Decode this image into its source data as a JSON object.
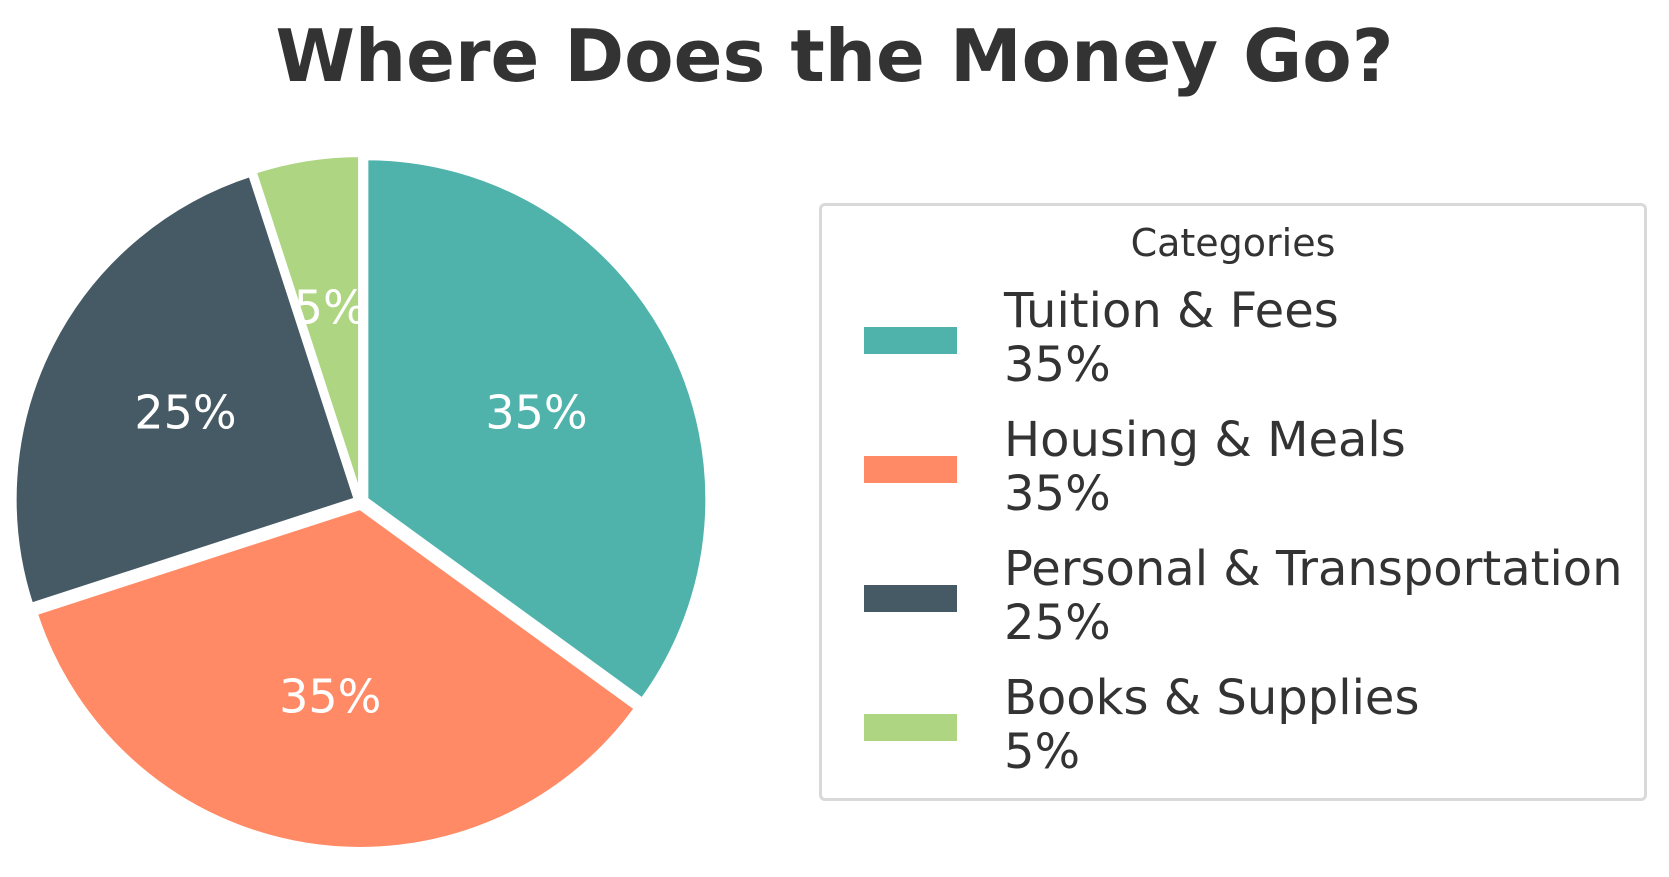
{
  "chart_data": {
    "type": "pie",
    "title": "Where Does the Money Go?",
    "legend_title": "Categories",
    "legend_position": "right",
    "start_angle_deg": 90,
    "direction": "clockwise",
    "slices": [
      {
        "name": "Tuition & Fees",
        "value": 35,
        "label": "35%",
        "color": "#4FB3AC"
      },
      {
        "name": "Housing & Meals",
        "value": 35,
        "label": "35%",
        "color": "#FF8A65"
      },
      {
        "name": "Personal & Transportation",
        "value": 25,
        "label": "25%",
        "color": "#455A64"
      },
      {
        "name": "Books & Supplies",
        "value": 5,
        "label": "5%",
        "color": "#AED581"
      }
    ]
  }
}
